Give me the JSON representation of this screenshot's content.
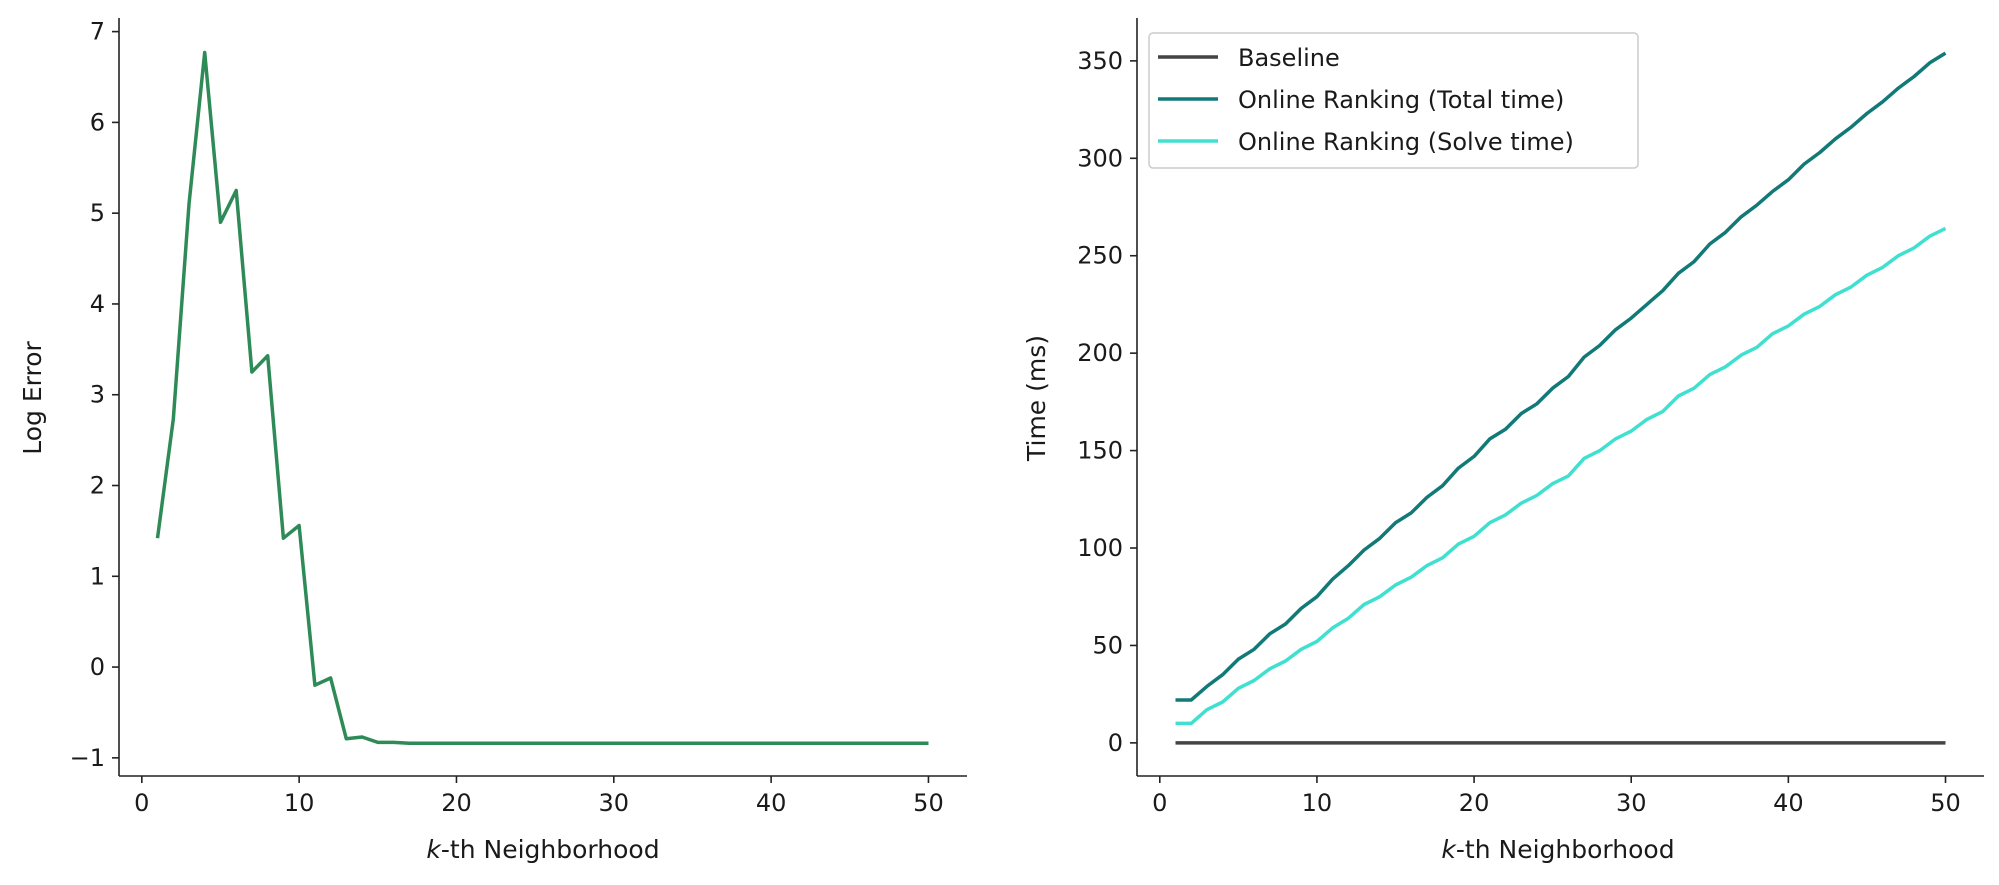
{
  "chart_data": [
    {
      "type": "line",
      "xlabel_italic": "k",
      "xlabel_rest": "-th Neighborhood",
      "ylabel": "Log Error",
      "xlim": [
        -1.45,
        52.45
      ],
      "ylim": [
        -1.2,
        7.15
      ],
      "xticks": [
        0,
        10,
        20,
        30,
        40,
        50
      ],
      "yticks": [
        -1,
        0,
        1,
        2,
        3,
        4,
        5,
        6,
        7
      ],
      "ytick_labels": [
        "−1",
        "0",
        "1",
        "2",
        "3",
        "4",
        "5",
        "6",
        "7"
      ],
      "grid": false,
      "series": [
        {
          "color": "#2e8b57",
          "x": [
            1,
            2,
            3,
            4,
            5,
            6,
            7,
            8,
            9,
            10,
            11,
            12,
            13,
            14,
            15,
            16,
            17,
            18,
            19,
            20,
            21,
            22,
            23,
            24,
            25,
            26,
            27,
            28,
            29,
            30,
            31,
            32,
            33,
            34,
            35,
            36,
            37,
            38,
            39,
            40,
            41,
            42,
            43,
            44,
            45,
            46,
            47,
            48,
            49,
            50
          ],
          "y": [
            1.42,
            2.73,
            5.1,
            6.77,
            4.9,
            5.25,
            3.25,
            3.43,
            1.42,
            1.56,
            -0.2,
            -0.12,
            -0.79,
            -0.77,
            -0.83,
            -0.83,
            -0.84,
            -0.84,
            -0.84,
            -0.84,
            -0.84,
            -0.84,
            -0.84,
            -0.84,
            -0.84,
            -0.84,
            -0.84,
            -0.84,
            -0.84,
            -0.84,
            -0.84,
            -0.84,
            -0.84,
            -0.84,
            -0.84,
            -0.84,
            -0.84,
            -0.84,
            -0.84,
            -0.84,
            -0.84,
            -0.84,
            -0.84,
            -0.84,
            -0.84,
            -0.84,
            -0.84,
            -0.84,
            -0.84,
            -0.84
          ]
        }
      ]
    },
    {
      "type": "line",
      "xlabel_italic": "k",
      "xlabel_rest": "-th Neighborhood",
      "ylabel": "Time (ms)",
      "xlim": [
        -1.45,
        52.45
      ],
      "ylim": [
        -17,
        372
      ],
      "xticks": [
        0,
        10,
        20,
        30,
        40,
        50
      ],
      "yticks": [
        0,
        50,
        100,
        150,
        200,
        250,
        300,
        350
      ],
      "ytick_labels": [
        "0",
        "50",
        "100",
        "150",
        "200",
        "250",
        "300",
        "350"
      ],
      "grid": false,
      "legend_position": "top-left",
      "series": [
        {
          "name": "Baseline",
          "color": "#444444",
          "x": [
            1,
            50
          ],
          "y": [
            0,
            0
          ]
        },
        {
          "name": "Online Ranking (Total time)",
          "color": "#117a78",
          "x": [
            1,
            2,
            3,
            4,
            5,
            6,
            7,
            8,
            9,
            10,
            11,
            12,
            13,
            14,
            15,
            16,
            17,
            18,
            19,
            20,
            21,
            22,
            23,
            24,
            25,
            26,
            27,
            28,
            29,
            30,
            31,
            32,
            33,
            34,
            35,
            36,
            37,
            38,
            39,
            40,
            41,
            42,
            43,
            44,
            45,
            46,
            47,
            48,
            49,
            50
          ],
          "y": [
            22,
            22,
            29,
            35,
            43,
            48,
            56,
            61,
            69,
            75,
            84,
            91,
            99,
            105,
            113,
            118,
            126,
            132,
            141,
            147,
            156,
            161,
            169,
            174,
            182,
            188,
            198,
            204,
            212,
            218,
            225,
            232,
            241,
            247,
            256,
            262,
            270,
            276,
            283,
            289,
            297,
            303,
            310,
            316,
            323,
            329,
            336,
            342,
            349,
            354
          ]
        },
        {
          "name": "Online Ranking (Solve time)",
          "color": "#40e0d0",
          "x": [
            1,
            2,
            3,
            4,
            5,
            6,
            7,
            8,
            9,
            10,
            11,
            12,
            13,
            14,
            15,
            16,
            17,
            18,
            19,
            20,
            21,
            22,
            23,
            24,
            25,
            26,
            27,
            28,
            29,
            30,
            31,
            32,
            33,
            34,
            35,
            36,
            37,
            38,
            39,
            40,
            41,
            42,
            43,
            44,
            45,
            46,
            47,
            48,
            49,
            50
          ],
          "y": [
            10,
            10,
            17,
            21,
            28,
            32,
            38,
            42,
            48,
            52,
            59,
            64,
            71,
            75,
            81,
            85,
            91,
            95,
            102,
            106,
            113,
            117,
            123,
            127,
            133,
            137,
            146,
            150,
            156,
            160,
            166,
            170,
            178,
            182,
            189,
            193,
            199,
            203,
            210,
            214,
            220,
            224,
            230,
            234,
            240,
            244,
            250,
            254,
            260,
            264
          ]
        }
      ]
    }
  ]
}
